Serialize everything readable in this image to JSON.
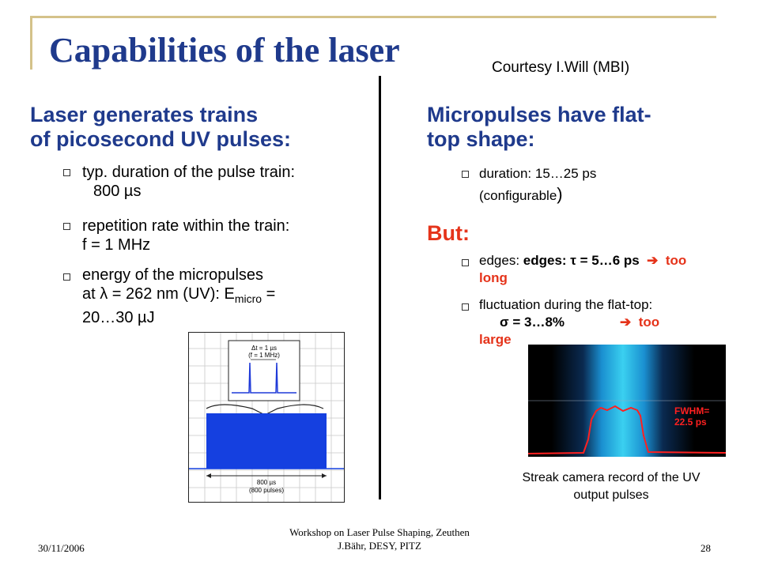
{
  "title": "Capabilities of the laser",
  "courtesy": "Courtesy I.Will (MBI)",
  "left": {
    "heading_line1": "Laser generates trains",
    "heading_line2": "of picosecond UV pulses:",
    "b1_line1": "typ. duration of the pulse train:",
    "b1_line2": "800 µs",
    "b2_line1": "repetition rate within the train:",
    "b2_line2": "f = 1 MHz",
    "b3_line1": "energy of the micropulses",
    "b3_line2a": "at λ = 262 nm (UV): E",
    "b3_sub": "micro",
    "b3_line2b": " =",
    "b3_line3": "20…30 µJ"
  },
  "right": {
    "heading_line1": "Micropulses have flat-",
    "heading_line2": "top shape:",
    "b1_line1": "duration: 15…25 ps",
    "b1_line2": "(configurable",
    "b1_paren": ")",
    "but": "But:",
    "b2_a": "edges: τ = 5…6 ps",
    "b2_arrow": "➔",
    "b2_b": "too",
    "b2_c": "long",
    "b3_line1": "fluctuation during the flat-top:",
    "b3_sigma": "σ = 3…8%",
    "b3_arrow": "➔",
    "b3_too": "too",
    "b3_large": "large"
  },
  "figure1": {
    "dt": "Δt = 1 µs",
    "f": "(f = 1 MHz)",
    "dur": "800 µs",
    "pulses": "(800 pulses)"
  },
  "figure2": {
    "fwhm1": "FWHM=",
    "fwhm2": "22.5 ps"
  },
  "caption_line1": "Streak camera record of the UV",
  "caption_line2": "output pulses",
  "footer": {
    "date": "30/11/2006",
    "center1": "Workshop on Laser Pulse Shaping, Zeuthen",
    "center2": "J.Bähr, DESY, PITZ",
    "page": "28"
  },
  "colors": {
    "title": "#1f3a8c",
    "accent_red": "#e5331a",
    "deco": "#d4c28a"
  }
}
